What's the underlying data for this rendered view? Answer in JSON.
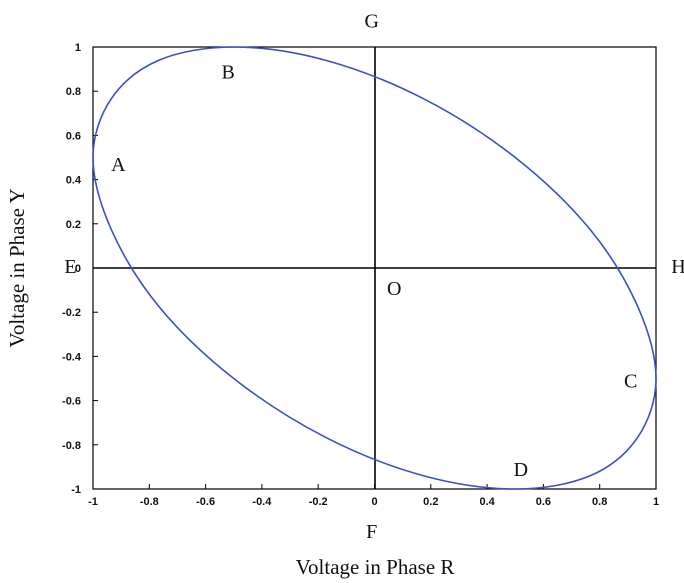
{
  "chart_data": {
    "type": "line",
    "xlabel": "Voltage in Phase R",
    "ylabel": "Voltage in Phase Y",
    "xlim": [
      -1,
      1
    ],
    "ylim": [
      -1,
      1
    ],
    "xticks": [
      "-1",
      "-0.8",
      "-0.6",
      "-0.4",
      "-0.2",
      "0",
      "0.2",
      "0.4",
      "0.6",
      "0.8",
      "1"
    ],
    "yticks": [
      "-1",
      "-0.8",
      "-0.6",
      "-0.4",
      "-0.2",
      "0",
      "0.2",
      "0.4",
      "0.6",
      "0.8",
      "1"
    ],
    "grid": false,
    "series": [
      {
        "color": "#3b4fc8",
        "x": [
          1.0,
          0.935,
          0.766,
          0.5,
          0.174,
          -0.174,
          -0.5,
          -0.766,
          -0.935,
          -1.0,
          -0.935,
          -0.766,
          -0.5,
          -0.174,
          0.174,
          0.5,
          0.766,
          0.935,
          1.0
        ],
        "y": [
          -0.5,
          -0.174,
          0.174,
          0.5,
          0.766,
          0.94,
          1.0,
          0.94,
          0.766,
          0.5,
          0.174,
          -0.174,
          -0.5,
          -0.766,
          -0.94,
          -1.0,
          -0.94,
          -0.766,
          -0.5
        ]
      }
    ],
    "axis_lines": {
      "horizontal_at_y": 0,
      "vertical_at_x": 0
    },
    "annotations": [
      {
        "text": "A",
        "x": -0.91,
        "y": 0.47
      },
      {
        "text": "B",
        "x": -0.52,
        "y": 0.89
      },
      {
        "text": "C",
        "x": 0.91,
        "y": -0.51
      },
      {
        "text": "D",
        "x": 0.52,
        "y": -0.91
      },
      {
        "text": "O",
        "x": 0.07,
        "y": -0.09
      },
      {
        "text": "E",
        "x": -1.08,
        "y": 0.01
      },
      {
        "text": "H",
        "x": 1.08,
        "y": 0.01
      },
      {
        "text": "G",
        "x": -0.01,
        "y": 1.12
      },
      {
        "text": "F",
        "x": -0.01,
        "y": -1.19
      }
    ]
  }
}
